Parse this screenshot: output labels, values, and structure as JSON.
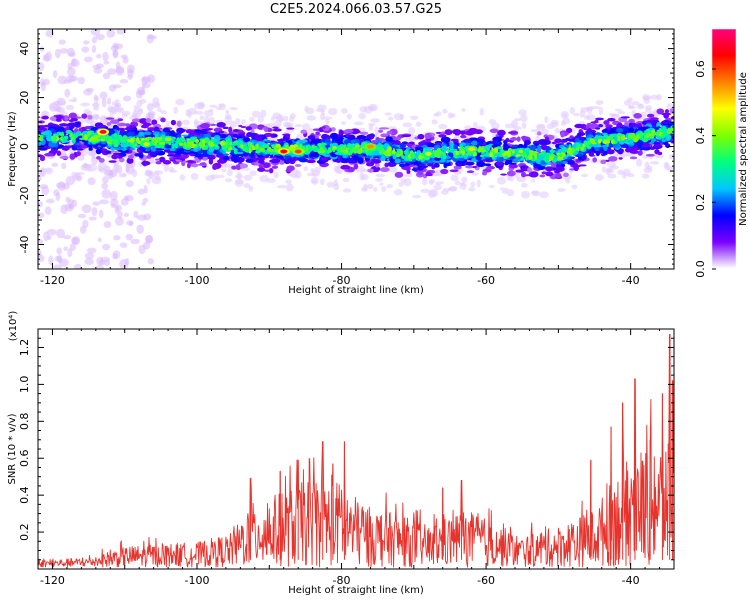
{
  "title": "C2E5.2024.066.03.57.G25",
  "chart_data": [
    {
      "type": "heatmap",
      "xlabel": "Height of straight line (km)",
      "ylabel": "Frequency (Hz)",
      "xlim": [
        -122,
        -34
      ],
      "ylim": [
        -50,
        48
      ],
      "xticks": [
        -120,
        -100,
        -80,
        -60,
        -40
      ],
      "yticks": [
        -40,
        -20,
        0,
        20,
        40
      ],
      "colorbar": {
        "label": "Normalized spectral amplitude",
        "range": [
          0.0,
          0.72
        ],
        "ticks": [
          0.0,
          0.2,
          0.4,
          0.6
        ],
        "colors": [
          "#ffffff",
          "#7a00ff",
          "#0000ff",
          "#00c8ff",
          "#00ff80",
          "#80ff00",
          "#ffff00",
          "#ff8000",
          "#ff0000",
          "#ff0080"
        ]
      },
      "band": {
        "centerline": [
          {
            "x": -122,
            "y": 4
          },
          {
            "x": -115,
            "y": 4
          },
          {
            "x": -110,
            "y": 2
          },
          {
            "x": -105,
            "y": 2
          },
          {
            "x": -100,
            "y": 1
          },
          {
            "x": -95,
            "y": 0
          },
          {
            "x": -90,
            "y": -1
          },
          {
            "x": -85,
            "y": -1
          },
          {
            "x": -80,
            "y": -1
          },
          {
            "x": -75,
            "y": -1
          },
          {
            "x": -70,
            "y": -4
          },
          {
            "x": -65,
            "y": -2
          },
          {
            "x": -60,
            "y": -2
          },
          {
            "x": -55,
            "y": -3
          },
          {
            "x": -50,
            "y": -4
          },
          {
            "x": -45,
            "y": 2
          },
          {
            "x": -40,
            "y": 4
          },
          {
            "x": -34,
            "y": 6
          }
        ],
        "halfwidth_hz": 8
      },
      "peaks": [
        {
          "x": -113,
          "y": 6,
          "amp": 0.68
        },
        {
          "x": -88,
          "y": -2,
          "amp": 0.65
        },
        {
          "x": -86,
          "y": -2,
          "amp": 0.6
        },
        {
          "x": -76,
          "y": 0,
          "amp": 0.55
        },
        {
          "x": -62,
          "y": -1,
          "amp": 0.5
        },
        {
          "x": -68,
          "y": -3,
          "amp": 0.45
        },
        {
          "x": -104,
          "y": 3,
          "amp": 0.42
        },
        {
          "x": -107,
          "y": 1,
          "amp": 0.45
        }
      ],
      "grid": false
    },
    {
      "type": "line",
      "xlabel": "Height of straight line (km)",
      "ylabel": "SNR (10 * v/v)",
      "yscale_label": "(x10⁴)",
      "xlim": [
        -122,
        -34
      ],
      "ylim": [
        0,
        1.3
      ],
      "xticks": [
        -120,
        -100,
        -80,
        -60,
        -40
      ],
      "yticks": [
        0.2,
        0.4,
        0.6,
        0.8,
        1.0,
        1.2
      ],
      "color": "#e8322c",
      "series": [
        {
          "envelope": [
            {
              "x": -122,
              "y": 0.05
            },
            {
              "x": -115,
              "y": 0.07
            },
            {
              "x": -110,
              "y": 0.15
            },
            {
              "x": -105,
              "y": 0.17
            },
            {
              "x": -100,
              "y": 0.18
            },
            {
              "x": -95,
              "y": 0.25
            },
            {
              "x": -93,
              "y": 0.45
            },
            {
              "x": -88,
              "y": 0.55
            },
            {
              "x": -84,
              "y": 0.65
            },
            {
              "x": -80,
              "y": 0.62
            },
            {
              "x": -77,
              "y": 0.45
            },
            {
              "x": -72,
              "y": 0.38
            },
            {
              "x": -68,
              "y": 0.3
            },
            {
              "x": -63,
              "y": 0.42
            },
            {
              "x": -60,
              "y": 0.35
            },
            {
              "x": -55,
              "y": 0.22
            },
            {
              "x": -50,
              "y": 0.3
            },
            {
              "x": -45,
              "y": 0.42
            },
            {
              "x": -42,
              "y": 0.68
            },
            {
              "x": -39,
              "y": 0.85
            },
            {
              "x": -36,
              "y": 0.95
            },
            {
              "x": -34,
              "y": 0.85
            }
          ],
          "spikes": [
            {
              "x": -92.6,
              "y": 0.49
            },
            {
              "x": -82.6,
              "y": 0.69
            },
            {
              "x": -79.6,
              "y": 0.69
            },
            {
              "x": -81.2,
              "y": 0.57
            },
            {
              "x": -86.0,
              "y": 0.59
            },
            {
              "x": -88.5,
              "y": 0.53
            },
            {
              "x": -66.0,
              "y": 0.44
            },
            {
              "x": -63.4,
              "y": 0.48
            },
            {
              "x": -45.5,
              "y": 0.59
            },
            {
              "x": -42.7,
              "y": 0.77
            },
            {
              "x": -41.1,
              "y": 0.9
            },
            {
              "x": -39.4,
              "y": 1.03
            },
            {
              "x": -37.3,
              "y": 0.7
            },
            {
              "x": -35.6,
              "y": 0.95
            },
            {
              "x": -34.6,
              "y": 1.27
            },
            {
              "x": -34.2,
              "y": 1.02
            }
          ]
        }
      ],
      "grid": false
    }
  ]
}
